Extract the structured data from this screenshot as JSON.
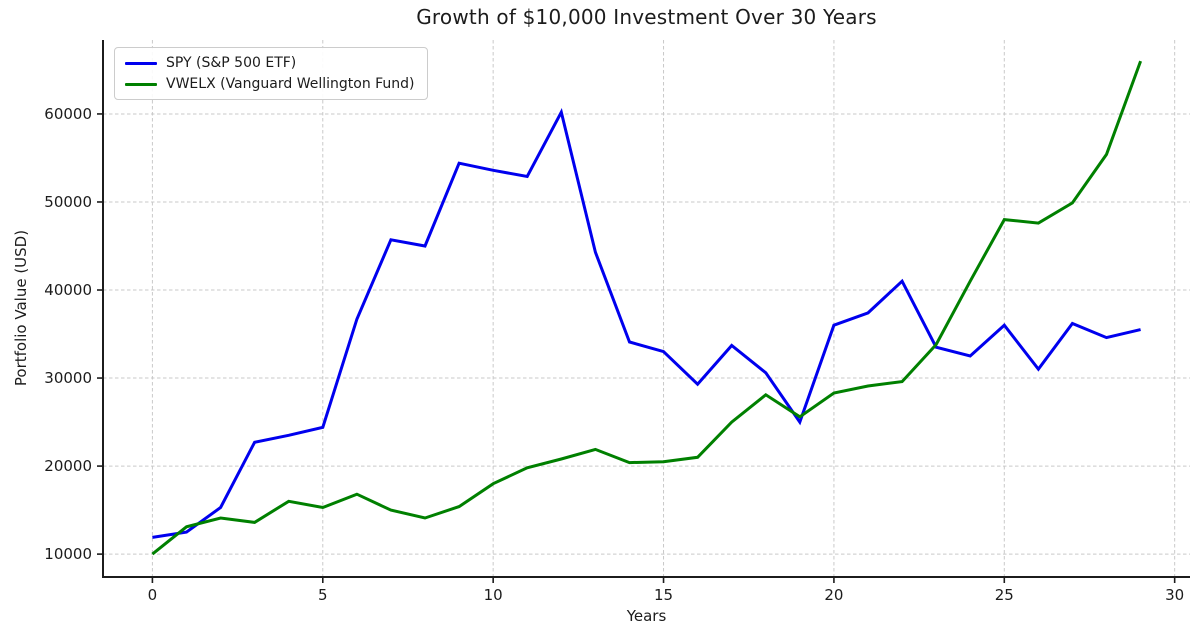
{
  "title": "Growth of $10,000 Investment Over 30 Years",
  "chart_data": {
    "type": "line",
    "title": "Growth of $10,000 Investment Over 30 Years",
    "xlabel": "Years",
    "ylabel": "Portfolio Value (USD)",
    "x": [
      0,
      1,
      2,
      3,
      4,
      5,
      6,
      7,
      8,
      9,
      10,
      11,
      12,
      13,
      14,
      15,
      16,
      17,
      18,
      19,
      20,
      21,
      22,
      23,
      24,
      25,
      26,
      27,
      28,
      29
    ],
    "series": [
      {
        "name": "SPY (S&P 500 ETF)",
        "color": "#0000ee",
        "values": [
          11900,
          12500,
          15300,
          22700,
          23500,
          24400,
          36700,
          45700,
          45000,
          54400,
          53600,
          52900,
          60200,
          44300,
          34100,
          33000,
          29300,
          33700,
          30600,
          25000,
          36000,
          37400,
          41000,
          33500,
          32500,
          36000,
          31000,
          36200,
          34600,
          35500
        ]
      },
      {
        "name": "VWELX (Vanguard Wellington Fund)",
        "color": "#008000",
        "values": [
          10000,
          13100,
          14100,
          13600,
          16000,
          15300,
          16800,
          15000,
          14100,
          15400,
          18000,
          19800,
          20800,
          21900,
          20400,
          20500,
          21000,
          25000,
          28100,
          25600,
          28300,
          29100,
          29600,
          33800,
          41000,
          48000,
          47600,
          49900,
          55400,
          66000
        ]
      }
    ],
    "xticks": [
      0,
      5,
      10,
      15,
      20,
      25,
      30
    ],
    "yticks": [
      10000,
      20000,
      30000,
      40000,
      50000,
      60000
    ],
    "xlim": [
      -1.45,
      30.45
    ],
    "ylim": [
      7400,
      68400
    ],
    "grid": true,
    "legend_position": "upper-left"
  },
  "colors": {
    "grid": "#c9c9c9",
    "spine": "#1c1c1c",
    "tick_label": "#1c1c1c",
    "background": "#ffffff"
  }
}
